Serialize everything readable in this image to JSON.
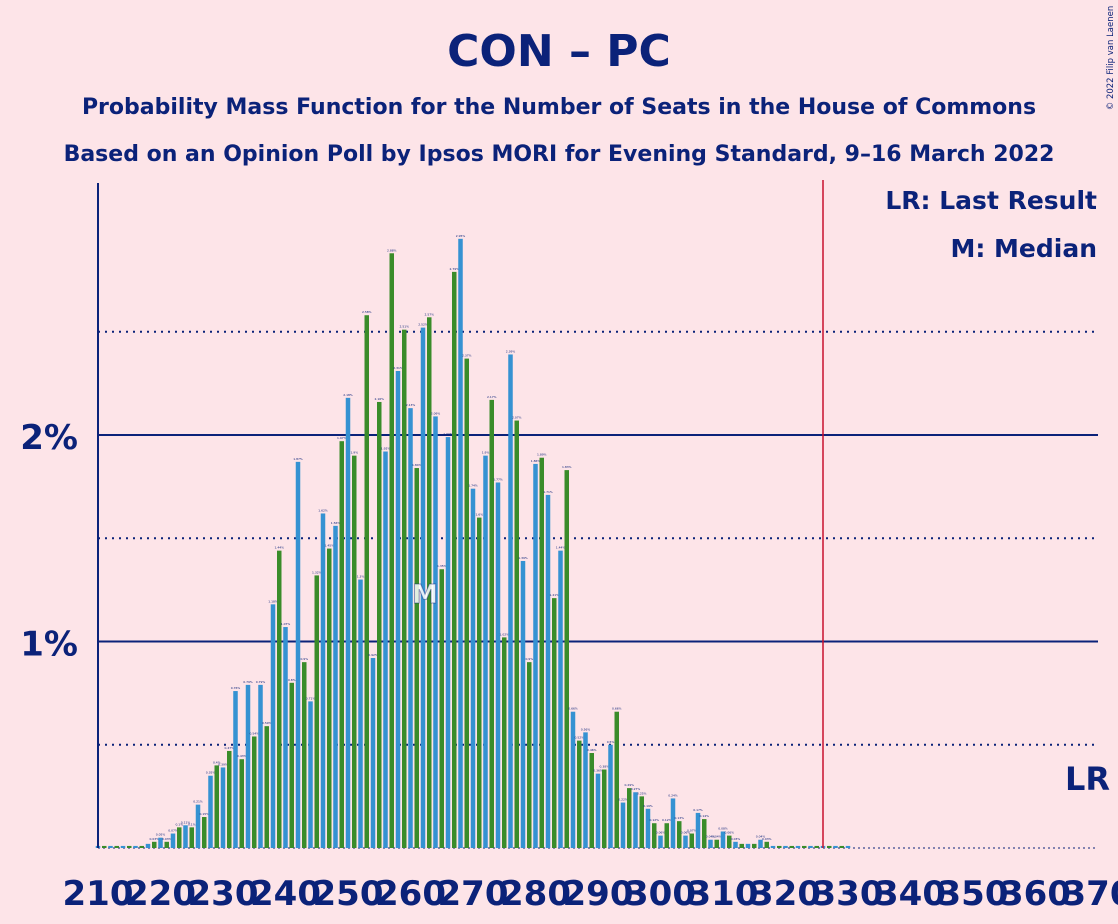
{
  "chart_data": {
    "type": "bar",
    "title": "CON – PC",
    "subtitle1": "Probability Mass Function for the Number of Seats in the House of Commons",
    "subtitle2": "Based on an Opinion Poll by Ipsos MORI for Evening Standard, 9–16 March 2022",
    "credit": "© 2022 Filip van Laenen",
    "legend": {
      "lr": "LR: Last Result",
      "m": "M: Median"
    },
    "y_ticks": [
      {
        "value": 1,
        "label": "1%"
      },
      {
        "value": 2,
        "label": "2%"
      }
    ],
    "dotted_lines": [
      0.5,
      1.5,
      2.5
    ],
    "x_range": [
      210,
      370
    ],
    "x_tick_step": 10,
    "ylim": [
      0,
      3.2
    ],
    "last_result": 326,
    "last_result_label": "LR",
    "median": 262,
    "median_label": "M",
    "colors": {
      "blue": "#3592d2",
      "green": "#3a8c2a",
      "axis": "#0b2279",
      "lr": "#c8102e",
      "background": "#fde4e8"
    },
    "x": [
      210,
      211,
      212,
      213,
      214,
      215,
      216,
      217,
      218,
      219,
      220,
      221,
      222,
      223,
      224,
      225,
      226,
      227,
      228,
      229,
      230,
      231,
      232,
      233,
      234,
      235,
      236,
      237,
      238,
      239,
      240,
      241,
      242,
      243,
      244,
      245,
      246,
      247,
      248,
      249,
      250,
      251,
      252,
      253,
      254,
      255,
      256,
      257,
      258,
      259,
      260,
      261,
      262,
      263,
      264,
      265,
      266,
      267,
      268,
      269,
      270,
      271,
      272,
      273,
      274,
      275,
      276,
      277,
      278,
      279,
      280,
      281,
      282,
      283,
      284,
      285,
      286,
      287,
      288,
      289,
      290,
      291,
      292,
      293,
      294,
      295,
      296,
      297,
      298,
      299,
      300,
      301,
      302,
      303,
      304,
      305,
      306,
      307,
      308,
      309,
      310,
      311,
      312,
      313,
      314,
      315,
      316,
      317,
      318,
      319,
      320,
      321,
      322,
      323,
      324,
      325,
      326,
      327,
      328,
      329,
      330
    ],
    "values": [
      0.01,
      0.01,
      0.01,
      0.01,
      0.01,
      0.01,
      0.01,
      0.01,
      0.02,
      0.03,
      0.05,
      0.03,
      0.07,
      0.1,
      0.11,
      0.1,
      0.21,
      0.15,
      0.35,
      0.4,
      0.39,
      0.47,
      0.76,
      0.43,
      0.79,
      0.54,
      0.79,
      0.59,
      1.18,
      1.44,
      1.07,
      0.8,
      1.87,
      0.9,
      0.71,
      1.32,
      1.62,
      1.45,
      1.56,
      1.97,
      2.18,
      1.9,
      1.3,
      2.58,
      0.92,
      2.16,
      1.92,
      2.88,
      2.31,
      2.51,
      2.13,
      1.84,
      2.52,
      2.57,
      2.09,
      1.35,
      1.99,
      2.79,
      2.95,
      2.37,
      1.74,
      1.6,
      1.9,
      2.17,
      1.77,
      1.02,
      2.39,
      2.07,
      1.39,
      0.9,
      1.86,
      1.89,
      1.71,
      1.21,
      1.44,
      1.83,
      0.66,
      0.52,
      0.56,
      0.46,
      0.36,
      0.38,
      0.5,
      0.66,
      0.22,
      0.29,
      0.27,
      0.25,
      0.19,
      0.12,
      0.06,
      0.12,
      0.24,
      0.13,
      0.06,
      0.07,
      0.17,
      0.14,
      0.04,
      0.04,
      0.08,
      0.06,
      0.03,
      0.02,
      0.02,
      0.02,
      0.04,
      0.03,
      0.01,
      0.01,
      0.01,
      0.01,
      0.01,
      0.01,
      0.01,
      0.01,
      0.01,
      0.01,
      0.01,
      0.01,
      0.01
    ]
  }
}
